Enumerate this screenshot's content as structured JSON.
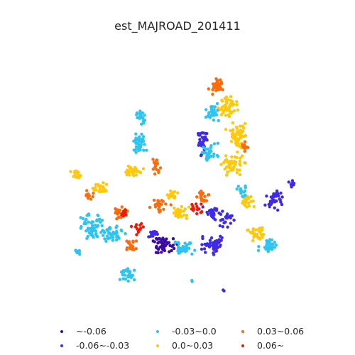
{
  "title": "est_MAJROAD_201411",
  "legend": [
    {
      "label": "~-0.06",
      "color": "#3a0ca3"
    },
    {
      "label": "-0.06~-0.03",
      "color": "#3f2ae8"
    },
    {
      "label": "-0.03~0.0",
      "color": "#2ec4f1"
    },
    {
      "label": "0.0~0.03",
      "color": "#ffc80a"
    },
    {
      "label": "0.03~0.06",
      "color": "#ff6a0a"
    },
    {
      "label": "0.06~",
      "color": "#f01a0a"
    }
  ]
}
